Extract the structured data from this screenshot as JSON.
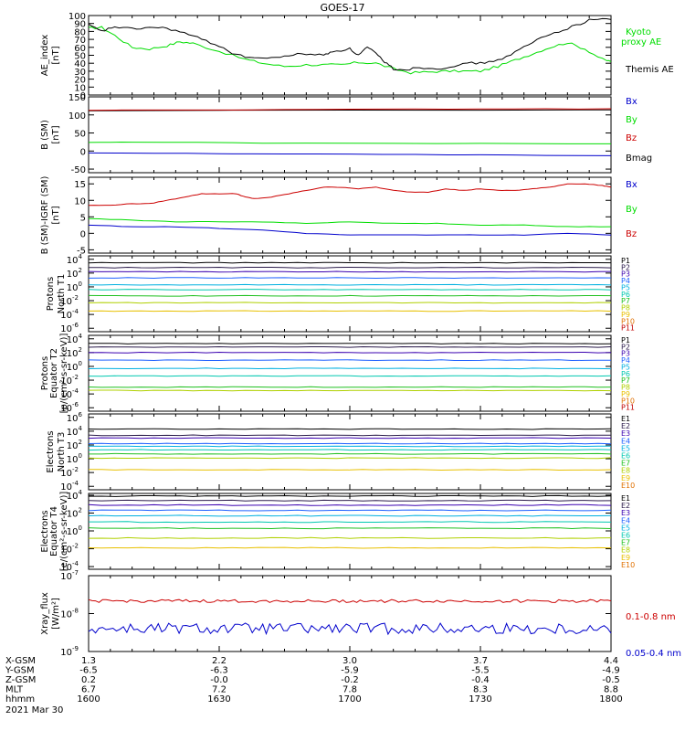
{
  "title": "GOES-17",
  "date_label": "2021 Mar 30",
  "colors": {
    "black": "#000000",
    "green": "#00dd00",
    "red": "#cc0000",
    "blue": "#0000cc",
    "channels": [
      "#000000",
      "#2a1a4a",
      "#3a00b0",
      "#1e60ff",
      "#00b0e0",
      "#00c8b0",
      "#20c020",
      "#b0d000",
      "#e8c000",
      "#e07000",
      "#c00000"
    ]
  },
  "footer": {
    "rows": [
      {
        "label": "X-GSM",
        "values": [
          "1.3",
          "2.2",
          "3.0",
          "3.7",
          "4.4"
        ]
      },
      {
        "label": "Y-GSM",
        "values": [
          "-6.5",
          "-6.3",
          "-5.9",
          "-5.5",
          "-4.9"
        ]
      },
      {
        "label": "Z-GSM",
        "values": [
          "0.2",
          "-0.0",
          "-0.2",
          "-0.4",
          "-0.5"
        ]
      },
      {
        "label": "MLT",
        "values": [
          "6.7",
          "7.2",
          "7.8",
          "8.3",
          "8.8"
        ]
      },
      {
        "label": "hhmm",
        "values": [
          "1600",
          "1630",
          "1700",
          "1730",
          "1800"
        ]
      }
    ]
  },
  "chart_data": [
    {
      "type": "line",
      "ylabel": "AE_index [nT]",
      "ylim": [
        0,
        100
      ],
      "yticks": [
        "0",
        "10",
        "20",
        "30",
        "40",
        "50",
        "60",
        "70",
        "80",
        "90",
        "100"
      ],
      "legend": [
        "Kyoto proxy AE",
        "Themis AE"
      ],
      "series": [
        {
          "name": "Kyoto proxy AE",
          "color": "#00dd00",
          "x": [
            0,
            3,
            6,
            10,
            14,
            18,
            21,
            24,
            30,
            36,
            40,
            45,
            50,
            55,
            58,
            62,
            66,
            70,
            74,
            78,
            82,
            86,
            90,
            94,
            98,
            102,
            106,
            110,
            114,
            118,
            120
          ],
          "y": [
            84,
            85,
            75,
            60,
            58,
            62,
            67,
            65,
            55,
            45,
            40,
            36,
            38,
            38,
            38,
            41,
            40,
            33,
            28,
            29,
            30,
            30,
            30,
            36,
            44,
            52,
            60,
            66,
            58,
            45,
            42
          ]
        },
        {
          "name": "Themis AE",
          "color": "#000000",
          "x": [
            0,
            3,
            6,
            10,
            14,
            18,
            22,
            26,
            30,
            34,
            38,
            42,
            46,
            50,
            54,
            56,
            60,
            62,
            64,
            66,
            68,
            70,
            73,
            76,
            80,
            84,
            88,
            92,
            96,
            100,
            104,
            108,
            112,
            116,
            120
          ],
          "y": [
            88,
            80,
            86,
            83,
            85,
            84,
            78,
            70,
            62,
            50,
            47,
            46,
            50,
            52,
            50,
            55,
            58,
            50,
            60,
            52,
            42,
            33,
            32,
            35,
            33,
            37,
            40,
            41,
            48,
            60,
            72,
            80,
            88,
            96,
            95
          ]
        }
      ]
    },
    {
      "type": "line",
      "ylabel": "B (SM) [nT]",
      "ylim": [
        -60,
        150
      ],
      "yticks": [
        "-50",
        "0",
        "50",
        "100",
        "150"
      ],
      "legend": [
        "Bx",
        "By",
        "Bz",
        "Bmag"
      ],
      "series": [
        {
          "name": "Bmag",
          "color": "#000000",
          "x": [
            0,
            120
          ],
          "y": [
            112,
            114
          ]
        },
        {
          "name": "Bz",
          "color": "#cc0000",
          "x": [
            0,
            30,
            60,
            90,
            120
          ],
          "y": [
            113,
            114,
            116,
            116,
            117
          ]
        },
        {
          "name": "By",
          "color": "#00dd00",
          "x": [
            0,
            10,
            40,
            80,
            120
          ],
          "y": [
            24,
            25,
            22,
            21,
            20
          ]
        },
        {
          "name": "Bx",
          "color": "#0000cc",
          "x": [
            0,
            30,
            60,
            90,
            120
          ],
          "y": [
            -5,
            -7,
            -9,
            -11,
            -13
          ]
        }
      ]
    },
    {
      "type": "line",
      "ylabel": "B (SM)-IGRF (SM) [nT]",
      "ylim": [
        -6,
        17
      ],
      "yticks": [
        "-5",
        "0",
        "5",
        "10",
        "15"
      ],
      "legend": [
        "Bx",
        "By",
        "Bz"
      ],
      "series": [
        {
          "name": "Bz",
          "color": "#cc0000",
          "x": [
            0,
            5,
            10,
            14,
            18,
            22,
            26,
            30,
            34,
            36,
            38,
            42,
            46,
            50,
            54,
            58,
            62,
            66,
            70,
            74,
            78,
            82,
            86,
            90,
            94,
            98,
            102,
            106,
            110,
            114,
            118,
            120
          ],
          "y": [
            8.5,
            8.5,
            9,
            9,
            10,
            11,
            12,
            12,
            12,
            11,
            10.5,
            11,
            12,
            13,
            14,
            14,
            13.5,
            14,
            13,
            12.5,
            12.5,
            13.5,
            13,
            13.5,
            13,
            13,
            13.5,
            14,
            15,
            15,
            14.5,
            14
          ]
        },
        {
          "name": "By",
          "color": "#00dd00",
          "x": [
            0,
            10,
            20,
            30,
            40,
            50,
            60,
            70,
            80,
            90,
            100,
            110,
            120
          ],
          "y": [
            4.5,
            4,
            3.5,
            3.5,
            3.5,
            3,
            3.5,
            3,
            3,
            2.5,
            2.5,
            2,
            2
          ]
        },
        {
          "name": "Bx",
          "color": "#0000cc",
          "x": [
            0,
            10,
            20,
            30,
            40,
            50,
            60,
            70,
            80,
            90,
            100,
            110,
            120
          ],
          "y": [
            2.5,
            2,
            2,
            1.5,
            1,
            0,
            -0.5,
            -0.5,
            -0.5,
            -0.5,
            -0.5,
            0,
            -0.5
          ]
        }
      ]
    },
    {
      "type": "line",
      "ylabel": "Protons North T1",
      "scale": "log",
      "ylim": [
        -6.5,
        4.5
      ],
      "yticks": [
        "10^4",
        "10^2",
        "10^0",
        "10^-2",
        "10^-4",
        "10^-6"
      ],
      "legend": [
        "P1",
        "P2",
        "P3",
        "P4",
        "P5",
        "P6",
        "P7",
        "P8",
        "P9",
        "P10",
        "P11"
      ],
      "series": [
        {
          "name": "P1",
          "levels": [
            3.5
          ]
        },
        {
          "name": "P2",
          "levels": [
            2.8
          ]
        },
        {
          "name": "P3",
          "levels": [
            2.2
          ]
        },
        {
          "name": "P4",
          "levels": [
            1.3
          ]
        },
        {
          "name": "P5",
          "levels": [
            0.3
          ]
        },
        {
          "name": "P6",
          "levels": [
            -0.4
          ]
        },
        {
          "name": "P7",
          "levels": [
            -1.3
          ]
        },
        {
          "name": "P8",
          "levels": [
            -2.3
          ]
        },
        {
          "name": "P9",
          "levels": [
            -3.5
          ]
        }
      ]
    },
    {
      "type": "line",
      "ylabel": "Protons Equator T2 [p/(cm²-s-sr-keV)]",
      "scale": "log",
      "ylim": [
        -6.5,
        4.5
      ],
      "yticks": [
        "10^4",
        "10^2",
        "10^0",
        "10^-2",
        "10^-4",
        "10^-6"
      ],
      "legend": [
        "P1",
        "P2",
        "P3",
        "P4",
        "P5",
        "P6",
        "P7",
        "P8",
        "P9",
        "P10",
        "P11"
      ],
      "series": [
        {
          "name": "P1",
          "levels": [
            3.3
          ]
        },
        {
          "name": "P2",
          "levels": [
            2.8
          ]
        },
        {
          "name": "P3",
          "levels": [
            2.0
          ]
        },
        {
          "name": "P4",
          "levels": [
            0.9
          ]
        },
        {
          "name": "P5",
          "levels": [
            -0.3
          ]
        },
        {
          "name": "P6",
          "levels": [
            -1.4
          ]
        },
        {
          "name": "P7",
          "levels": [
            -3.0
          ]
        },
        {
          "name": "P8",
          "levels": [
            -3.5
          ]
        }
      ]
    },
    {
      "type": "line",
      "ylabel": "Electrons North T3",
      "scale": "log",
      "ylim": [
        -4.5,
        6.5
      ],
      "yticks": [
        "10^6",
        "10^4",
        "10^2",
        "10^0",
        "10^-2",
        "10^-4"
      ],
      "legend": [
        "E1",
        "E2",
        "E3",
        "E4",
        "E5",
        "E6",
        "E7",
        "E8",
        "E9",
        "E10"
      ],
      "series": [
        {
          "name": "E1",
          "levels": [
            4.3
          ]
        },
        {
          "name": "E2",
          "levels": [
            3.4
          ]
        },
        {
          "name": "E3",
          "levels": [
            3.0
          ]
        },
        {
          "name": "E4",
          "levels": [
            2.2
          ]
        },
        {
          "name": "E5",
          "levels": [
            1.8
          ]
        },
        {
          "name": "E6",
          "levels": [
            1.3
          ]
        },
        {
          "name": "E7",
          "levels": [
            0.7
          ]
        },
        {
          "name": "E8",
          "levels": [
            0.1
          ]
        },
        {
          "name": "E9",
          "levels": [
            -1.6
          ]
        }
      ]
    },
    {
      "type": "line",
      "ylabel": "Electrons Equator T4 [e/(cm²-s-sr-keV)]",
      "scale": "log",
      "ylim": [
        -4.3,
        4.2
      ],
      "yticks": [
        "10^4",
        "10^2",
        "10^0",
        "10^-2",
        "10^-4"
      ],
      "legend": [
        "E1",
        "E2",
        "E3",
        "E4",
        "E5",
        "E6",
        "E7",
        "E8",
        "E9",
        "E10"
      ],
      "series": [
        {
          "name": "E1",
          "levels": [
            3.9
          ]
        },
        {
          "name": "E2",
          "levels": [
            3.4
          ]
        },
        {
          "name": "E3",
          "levels": [
            2.9
          ]
        },
        {
          "name": "E4",
          "levels": [
            2.3
          ]
        },
        {
          "name": "E5",
          "levels": [
            1.7
          ]
        },
        {
          "name": "E6",
          "levels": [
            1.0
          ]
        },
        {
          "name": "E7",
          "levels": [
            0.3
          ]
        },
        {
          "name": "E8",
          "levels": [
            -0.8
          ]
        },
        {
          "name": "E9",
          "levels": [
            -1.9
          ]
        }
      ]
    },
    {
      "type": "line",
      "ylabel": "Xray_flux [W/m²]",
      "scale": "log",
      "ylim": [
        -9,
        -7
      ],
      "yticks": [
        "10^-7",
        "10^-8",
        "10^-9"
      ],
      "legend": [
        "0.1-0.8 nm",
        "0.05-0.4 nm"
      ],
      "series": [
        {
          "name": "0.1-0.8 nm",
          "color": "#cc0000",
          "levels": [
            -7.67
          ]
        },
        {
          "name": "0.05-0.4 nm",
          "color": "#0000cc",
          "levels": [
            -8.4
          ]
        }
      ]
    }
  ]
}
